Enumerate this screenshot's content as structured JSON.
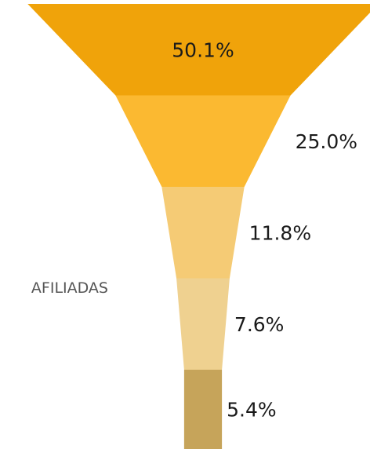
{
  "chart_data": {
    "type": "funnel",
    "categories": [
      null,
      null,
      null,
      "AFILIADAS",
      null
    ],
    "values": [
      50.1,
      25.0,
      11.8,
      7.6,
      5.4
    ],
    "value_labels": [
      "50.1%",
      "25.0%",
      "11.8%",
      "7.6%",
      "5.4%"
    ],
    "colors": [
      "#f0a30a",
      "#fbb931",
      "#f5cb75",
      "#efd190",
      "#c6a45a"
    ]
  }
}
